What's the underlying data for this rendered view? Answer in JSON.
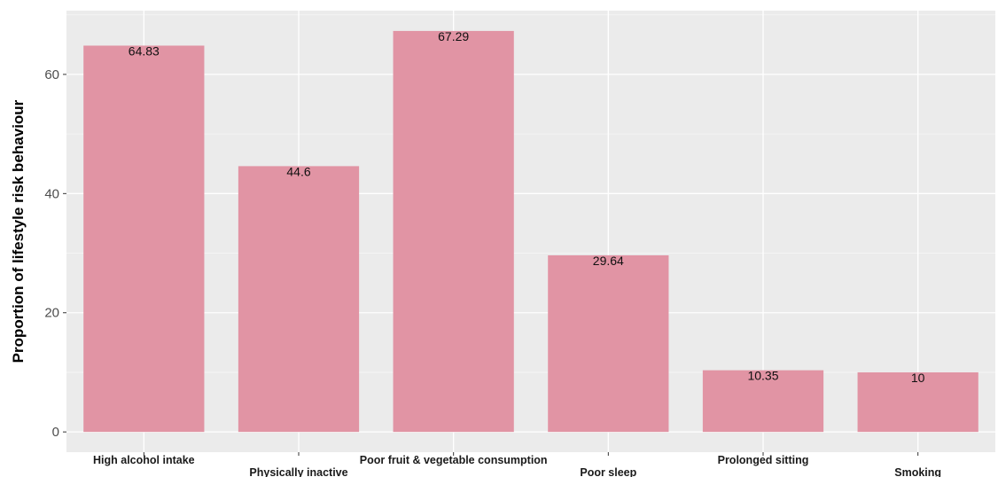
{
  "chart_data": {
    "type": "bar",
    "title": "",
    "xlabel": "",
    "ylabel": "Proportion of lifestyle risk behaviour",
    "categories": [
      "High alcohol intake",
      "Physically inactive",
      "Poor fruit & vegetable consumption",
      "Poor sleep",
      "Prolonged sitting",
      "Smoking"
    ],
    "values": [
      64.83,
      44.6,
      67.29,
      29.64,
      10.35,
      10
    ],
    "data_labels": [
      "64.83",
      "44.6",
      "67.29",
      "29.64",
      "10.35",
      "10"
    ],
    "yticks": [
      0,
      20,
      40,
      60
    ],
    "ytick_labels": [
      "0",
      "20",
      "40",
      "60"
    ],
    "ylim": [
      -3.4,
      70.7
    ],
    "grid": true,
    "legend": "none",
    "colors": {
      "bar": "#e194a4",
      "panel": "#ebebeb",
      "grid_major": "#ffffff",
      "grid_minor": "#f4f4f4"
    }
  }
}
